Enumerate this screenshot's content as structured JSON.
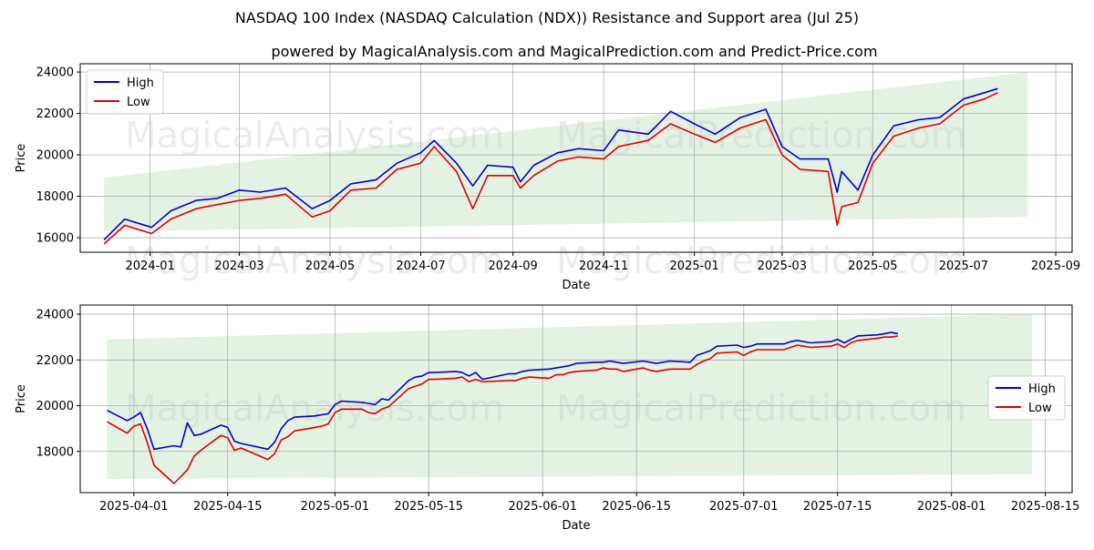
{
  "title": "NASDAQ 100 Index (NASDAQ Calculation (NDX)) Resistance and Support area (Jul 25)",
  "subtitle": "powered by MagicalAnalysis.com and MagicalPrediction.com and Predict-Price.com",
  "watermarks": [
    "MagicalAnalysis.com",
    "MagicalPrediction.com"
  ],
  "colors": {
    "high": "#0000cc",
    "low": "#dd0000",
    "band": "#d9ecd9"
  },
  "chart_data": [
    {
      "type": "line",
      "xlabel": "Date",
      "ylabel": "Price",
      "legend": "top-left",
      "grid": true,
      "xlim": [
        "2023-11-15",
        "2025-09-12"
      ],
      "ylim": [
        15300,
        24400
      ],
      "x_ticks": [
        {
          "date": "2024-01-01",
          "label": "2024-01"
        },
        {
          "date": "2024-03-01",
          "label": "2024-03"
        },
        {
          "date": "2024-05-01",
          "label": "2024-05"
        },
        {
          "date": "2024-07-01",
          "label": "2024-07"
        },
        {
          "date": "2024-09-01",
          "label": "2024-09"
        },
        {
          "date": "2024-11-01",
          "label": "2024-11"
        },
        {
          "date": "2025-01-01",
          "label": "2025-01"
        },
        {
          "date": "2025-03-01",
          "label": "2025-03"
        },
        {
          "date": "2025-05-01",
          "label": "2025-05"
        },
        {
          "date": "2025-07-01",
          "label": "2025-07"
        },
        {
          "date": "2025-09-01",
          "label": "2025-09"
        }
      ],
      "y_ticks": [
        16000,
        18000,
        20000,
        22000,
        24000
      ],
      "band": {
        "x": [
          "2023-12-01",
          "2025-08-13"
        ],
        "upper": [
          18900,
          24000
        ],
        "lower": [
          16300,
          17000
        ]
      },
      "x": [
        "2023-12-01",
        "2023-12-15",
        "2024-01-02",
        "2024-01-15",
        "2024-02-01",
        "2024-02-15",
        "2024-03-01",
        "2024-03-15",
        "2024-04-01",
        "2024-04-19",
        "2024-05-01",
        "2024-05-15",
        "2024-06-01",
        "2024-06-15",
        "2024-07-01",
        "2024-07-10",
        "2024-07-25",
        "2024-08-05",
        "2024-08-15",
        "2024-09-01",
        "2024-09-06",
        "2024-09-15",
        "2024-10-01",
        "2024-10-15",
        "2024-11-01",
        "2024-11-11",
        "2024-12-01",
        "2024-12-16",
        "2025-01-01",
        "2025-01-15",
        "2025-02-01",
        "2025-02-18",
        "2025-03-01",
        "2025-03-13",
        "2025-04-01",
        "2025-04-07",
        "2025-04-10",
        "2025-04-21",
        "2025-05-01",
        "2025-05-15",
        "2025-06-01",
        "2025-06-15",
        "2025-07-01",
        "2025-07-15",
        "2025-07-24"
      ],
      "series": [
        {
          "name": "High",
          "values": [
            15900,
            16900,
            16500,
            17300,
            17800,
            17900,
            18300,
            18200,
            18400,
            17400,
            17800,
            18600,
            18800,
            19600,
            20100,
            20700,
            19600,
            18500,
            19500,
            19400,
            18700,
            19500,
            20100,
            20300,
            20200,
            21200,
            21000,
            22100,
            21500,
            21000,
            21800,
            22200,
            20400,
            19800,
            19800,
            18200,
            19200,
            18300,
            20000,
            21400,
            21700,
            21800,
            22700,
            23000,
            23200
          ]
        },
        {
          "name": "Low",
          "values": [
            15700,
            16600,
            16200,
            16900,
            17400,
            17600,
            17800,
            17900,
            18100,
            17000,
            17300,
            18300,
            18400,
            19300,
            19600,
            20400,
            19200,
            17400,
            19000,
            19000,
            18400,
            19000,
            19700,
            19900,
            19800,
            20400,
            20700,
            21500,
            21000,
            20600,
            21300,
            21700,
            20000,
            19300,
            19200,
            16600,
            17500,
            17700,
            19600,
            20900,
            21300,
            21500,
            22400,
            22700,
            23000
          ]
        }
      ]
    },
    {
      "type": "line",
      "xlabel": "Date",
      "ylabel": "Price",
      "legend": "right",
      "grid": true,
      "xlim": [
        "2025-03-24",
        "2025-08-19"
      ],
      "ylim": [
        16200,
        24400
      ],
      "x_ticks": [
        {
          "date": "2025-04-01",
          "label": "2025-04-01"
        },
        {
          "date": "2025-04-15",
          "label": "2025-04-15"
        },
        {
          "date": "2025-05-01",
          "label": "2025-05-01"
        },
        {
          "date": "2025-05-15",
          "label": "2025-05-15"
        },
        {
          "date": "2025-06-01",
          "label": "2025-06-01"
        },
        {
          "date": "2025-06-15",
          "label": "2025-06-15"
        },
        {
          "date": "2025-07-01",
          "label": "2025-07-01"
        },
        {
          "date": "2025-07-15",
          "label": "2025-07-15"
        },
        {
          "date": "2025-08-01",
          "label": "2025-08-01"
        },
        {
          "date": "2025-08-15",
          "label": "2025-08-15"
        }
      ],
      "y_ticks": [
        18000,
        20000,
        22000,
        24000
      ],
      "band": {
        "x": [
          "2025-03-28",
          "2025-08-13"
        ],
        "upper": [
          22900,
          24000
        ],
        "lower": [
          16800,
          17000
        ]
      },
      "x": [
        "2025-03-28",
        "2025-03-31",
        "2025-04-01",
        "2025-04-02",
        "2025-04-03",
        "2025-04-04",
        "2025-04-07",
        "2025-04-08",
        "2025-04-09",
        "2025-04-10",
        "2025-04-11",
        "2025-04-14",
        "2025-04-15",
        "2025-04-16",
        "2025-04-17",
        "2025-04-21",
        "2025-04-22",
        "2025-04-23",
        "2025-04-24",
        "2025-04-25",
        "2025-04-28",
        "2025-04-29",
        "2025-04-30",
        "2025-05-01",
        "2025-05-02",
        "2025-05-05",
        "2025-05-06",
        "2025-05-07",
        "2025-05-08",
        "2025-05-09",
        "2025-05-12",
        "2025-05-13",
        "2025-05-14",
        "2025-05-15",
        "2025-05-16",
        "2025-05-19",
        "2025-05-20",
        "2025-05-21",
        "2025-05-22",
        "2025-05-23",
        "2025-05-27",
        "2025-05-28",
        "2025-05-29",
        "2025-05-30",
        "2025-06-02",
        "2025-06-03",
        "2025-06-04",
        "2025-06-05",
        "2025-06-06",
        "2025-06-09",
        "2025-06-10",
        "2025-06-11",
        "2025-06-12",
        "2025-06-13",
        "2025-06-16",
        "2025-06-17",
        "2025-06-18",
        "2025-06-20",
        "2025-06-23",
        "2025-06-24",
        "2025-06-25",
        "2025-06-26",
        "2025-06-27",
        "2025-06-30",
        "2025-07-01",
        "2025-07-02",
        "2025-07-03",
        "2025-07-07",
        "2025-07-08",
        "2025-07-09",
        "2025-07-10",
        "2025-07-11",
        "2025-07-14",
        "2025-07-15",
        "2025-07-16",
        "2025-07-17",
        "2025-07-18",
        "2025-07-21",
        "2025-07-22",
        "2025-07-23",
        "2025-07-24"
      ],
      "series": [
        {
          "name": "High",
          "values": [
            19800,
            19350,
            19500,
            19700,
            19000,
            18100,
            18250,
            18200,
            19250,
            18700,
            18750,
            19150,
            19050,
            18450,
            18350,
            18100,
            18400,
            19000,
            19350,
            19500,
            19550,
            19600,
            19650,
            20050,
            20200,
            20150,
            20100,
            20050,
            20300,
            20250,
            21100,
            21250,
            21300,
            21450,
            21450,
            21500,
            21450,
            21300,
            21450,
            21150,
            21400,
            21400,
            21500,
            21550,
            21600,
            21650,
            21700,
            21750,
            21850,
            21900,
            21900,
            21950,
            21900,
            21850,
            21950,
            21900,
            21850,
            21950,
            21900,
            22200,
            22300,
            22400,
            22600,
            22650,
            22550,
            22600,
            22700,
            22700,
            22800,
            22850,
            22800,
            22750,
            22800,
            22900,
            22750,
            22900,
            23050,
            23100,
            23150,
            23200,
            23150
          ]
        },
        {
          "name": "Low",
          "values": [
            19300,
            18800,
            19100,
            19200,
            18400,
            17400,
            16600,
            16900,
            17200,
            17800,
            18050,
            18700,
            18600,
            18050,
            18150,
            17650,
            17900,
            18500,
            18650,
            18900,
            19050,
            19100,
            19200,
            19700,
            19850,
            19850,
            19700,
            19650,
            19850,
            19950,
            20750,
            20850,
            20950,
            21150,
            21150,
            21200,
            21250,
            21050,
            21150,
            21050,
            21100,
            21100,
            21200,
            21250,
            21200,
            21350,
            21350,
            21450,
            21500,
            21550,
            21650,
            21600,
            21600,
            21500,
            21650,
            21550,
            21500,
            21600,
            21600,
            21800,
            21950,
            22050,
            22300,
            22350,
            22200,
            22350,
            22450,
            22450,
            22550,
            22650,
            22600,
            22550,
            22600,
            22700,
            22550,
            22750,
            22850,
            22950,
            23000,
            23000,
            23050
          ]
        }
      ]
    }
  ]
}
